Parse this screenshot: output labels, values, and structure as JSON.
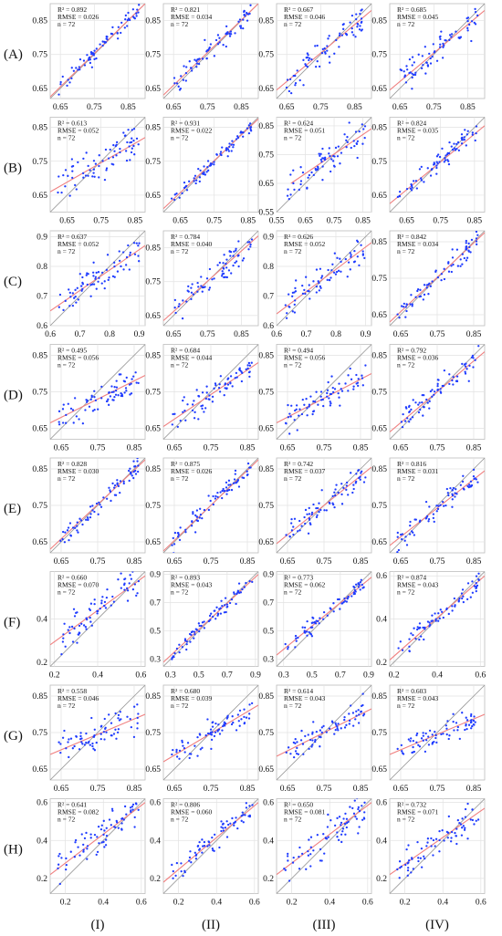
{
  "figure": {
    "row_labels": [
      "(A)",
      "(B)",
      "(C)",
      "(D)",
      "(E)",
      "(F)",
      "(G)",
      "(H)"
    ],
    "col_labels": [
      "(I)",
      "(II)",
      "(III)",
      "(IV)"
    ]
  },
  "style": {
    "point_color": "#1f3cff",
    "fit_color": "#f08080",
    "identity_color": "#9a9a9a",
    "grid_color": "#e2e2e2"
  },
  "chart_data": [
    {
      "type": "scatter",
      "row": "(A)",
      "col": "(I)",
      "r2": "R² = 0.892",
      "rmse": "RMSE = 0.026",
      "n": "n = 72",
      "xlim": [
        0.62,
        0.9
      ],
      "ylim": [
        0.62,
        0.9
      ],
      "xticks": [
        "0.65",
        "0.75",
        "0.85"
      ],
      "yticks": [
        "0.65",
        "0.75",
        "0.85"
      ],
      "fit": [
        [
          0.62,
          0.625
        ],
        [
          0.9,
          0.9
        ]
      ],
      "seed": 1,
      "noise": 0.02
    },
    {
      "type": "scatter",
      "row": "(A)",
      "col": "(II)",
      "r2": "R² = 0.821",
      "rmse": "RMSE = 0.034",
      "n": "n = 72",
      "xlim": [
        0.62,
        0.9
      ],
      "ylim": [
        0.62,
        0.9
      ],
      "xticks": [
        "0.65",
        "0.75",
        "0.85"
      ],
      "yticks": [
        "0.65",
        "0.75",
        "0.85"
      ],
      "fit": [
        [
          0.62,
          0.63
        ],
        [
          0.9,
          0.9
        ]
      ],
      "seed": 2,
      "noise": 0.025
    },
    {
      "type": "scatter",
      "row": "(A)",
      "col": "(III)",
      "r2": "R² = 0.667",
      "rmse": "RMSE = 0.046",
      "n": "n = 72",
      "xlim": [
        0.62,
        0.9
      ],
      "ylim": [
        0.62,
        0.9
      ],
      "xticks": [
        "0.65",
        "0.75",
        "0.85"
      ],
      "yticks": [
        "0.65",
        "0.75",
        "0.85"
      ],
      "fit": [
        [
          0.62,
          0.645
        ],
        [
          0.9,
          0.88
        ]
      ],
      "seed": 3,
      "noise": 0.035
    },
    {
      "type": "scatter",
      "row": "(A)",
      "col": "(IV)",
      "r2": "R² = 0.685",
      "rmse": "RMSE = 0.045",
      "n": "n = 72",
      "xlim": [
        0.62,
        0.9
      ],
      "ylim": [
        0.62,
        0.9
      ],
      "xticks": [
        "0.65",
        "0.75",
        "0.85"
      ],
      "yticks": [
        "0.65",
        "0.75",
        "0.85"
      ],
      "fit": [
        [
          0.62,
          0.645
        ],
        [
          0.9,
          0.88
        ]
      ],
      "seed": 4,
      "noise": 0.035
    },
    {
      "type": "scatter",
      "row": "(B)",
      "col": "(I)",
      "r2": "R² = 0.613",
      "rmse": "RMSE = 0.052",
      "n": "n = 72",
      "xlim": [
        0.6,
        0.88
      ],
      "ylim": [
        0.6,
        0.88
      ],
      "xticks": [
        "0.65",
        "0.75",
        "0.85"
      ],
      "yticks": [
        "0.65",
        "0.75",
        "0.85"
      ],
      "fit": [
        [
          0.6,
          0.66
        ],
        [
          0.88,
          0.82
        ]
      ],
      "seed": 5,
      "noise": 0.04
    },
    {
      "type": "scatter",
      "row": "(B)",
      "col": "(II)",
      "r2": "R² = 0.931",
      "rmse": "RMSE = 0.022",
      "n": "n = 72",
      "xlim": [
        0.6,
        0.88
      ],
      "ylim": [
        0.6,
        0.88
      ],
      "xticks": [
        "0.65",
        "0.75",
        "0.85"
      ],
      "yticks": [
        "0.65",
        "0.75",
        "0.85"
      ],
      "fit": [
        [
          0.6,
          0.61
        ],
        [
          0.88,
          0.875
        ]
      ],
      "seed": 6,
      "noise": 0.015
    },
    {
      "type": "scatter",
      "row": "(B)",
      "col": "(III)",
      "r2": "R² = 0.624",
      "rmse": "RMSE = 0.051",
      "n": "n = 72",
      "xlim": [
        0.55,
        0.88
      ],
      "ylim": [
        0.55,
        0.88
      ],
      "xticks": [
        "0.55",
        "0.65",
        "0.75",
        "0.85"
      ],
      "yticks": [
        "0.55",
        "0.65",
        "0.75",
        "0.85"
      ],
      "fit": [
        [
          0.6,
          0.65
        ],
        [
          0.88,
          0.84
        ]
      ],
      "seed": 7,
      "noise": 0.045
    },
    {
      "type": "scatter",
      "row": "(B)",
      "col": "(IV)",
      "r2": "R² = 0.824",
      "rmse": "RMSE = 0.035",
      "n": "n = 72",
      "xlim": [
        0.6,
        0.88
      ],
      "ylim": [
        0.6,
        0.88
      ],
      "xticks": [
        "0.65",
        "0.75",
        "0.85"
      ],
      "yticks": [
        "0.65",
        "0.75",
        "0.85"
      ],
      "fit": [
        [
          0.6,
          0.625
        ],
        [
          0.88,
          0.855
        ]
      ],
      "seed": 8,
      "noise": 0.025
    },
    {
      "type": "scatter",
      "row": "(C)",
      "col": "(I)",
      "r2": "R² = 0.637",
      "rmse": "RMSE = 0.052",
      "n": "n = 72",
      "xlim": [
        0.6,
        0.92
      ],
      "ylim": [
        0.6,
        0.92
      ],
      "xticks": [
        "0.6",
        "0.7",
        "0.8",
        "0.9"
      ],
      "yticks": [
        "0.6",
        "0.7",
        "0.8",
        "0.9"
      ],
      "fit": [
        [
          0.6,
          0.65
        ],
        [
          0.92,
          0.87
        ]
      ],
      "seed": 9,
      "noise": 0.04
    },
    {
      "type": "scatter",
      "row": "(C)",
      "col": "(II)",
      "r2": "R² = 0.784",
      "rmse": "RMSE = 0.040",
      "n": "n = 72",
      "xlim": [
        0.62,
        0.9
      ],
      "ylim": [
        0.62,
        0.9
      ],
      "xticks": [
        "0.65",
        "0.75",
        "0.85"
      ],
      "yticks": [
        "0.65",
        "0.75",
        "0.85"
      ],
      "fit": [
        [
          0.62,
          0.635
        ],
        [
          0.9,
          0.885
        ]
      ],
      "seed": 10,
      "noise": 0.03
    },
    {
      "type": "scatter",
      "row": "(C)",
      "col": "(III)",
      "r2": "R² = 0.626",
      "rmse": "RMSE = 0.052",
      "n": "n = 72",
      "xlim": [
        0.6,
        0.92
      ],
      "ylim": [
        0.6,
        0.92
      ],
      "xticks": [
        "0.6",
        "0.7",
        "0.8",
        "0.9"
      ],
      "yticks": [
        "0.6",
        "0.7",
        "0.8",
        "0.9"
      ],
      "fit": [
        [
          0.6,
          0.64
        ],
        [
          0.92,
          0.88
        ]
      ],
      "seed": 11,
      "noise": 0.04
    },
    {
      "type": "scatter",
      "row": "(C)",
      "col": "(IV)",
      "r2": "R² = 0.842",
      "rmse": "RMSE = 0.034",
      "n": "n = 72",
      "xlim": [
        0.62,
        0.88
      ],
      "ylim": [
        0.62,
        0.88
      ],
      "xticks": [
        "0.65",
        "0.75",
        "0.85"
      ],
      "yticks": [
        "0.65",
        "0.75",
        "0.85"
      ],
      "fit": [
        [
          0.62,
          0.63
        ],
        [
          0.88,
          0.875
        ]
      ],
      "seed": 12,
      "noise": 0.025
    },
    {
      "type": "scatter",
      "row": "(D)",
      "col": "(I)",
      "r2": "R² = 0.495",
      "rmse": "RMSE = 0.056",
      "n": "n = 72",
      "xlim": [
        0.62,
        0.88
      ],
      "ylim": [
        0.62,
        0.88
      ],
      "xticks": [
        "0.65",
        "0.75",
        "0.85"
      ],
      "yticks": [
        "0.65",
        "0.75",
        "0.85"
      ],
      "fit": [
        [
          0.62,
          0.665
        ],
        [
          0.88,
          0.795
        ]
      ],
      "seed": 13,
      "noise": 0.03
    },
    {
      "type": "scatter",
      "row": "(D)",
      "col": "(II)",
      "r2": "R² = 0.684",
      "rmse": "RMSE = 0.044",
      "n": "n = 72",
      "xlim": [
        0.62,
        0.88
      ],
      "ylim": [
        0.62,
        0.88
      ],
      "xticks": [
        "0.65",
        "0.75",
        "0.85"
      ],
      "yticks": [
        "0.65",
        "0.75",
        "0.85"
      ],
      "fit": [
        [
          0.62,
          0.655
        ],
        [
          0.88,
          0.83
        ]
      ],
      "seed": 14,
      "noise": 0.03
    },
    {
      "type": "scatter",
      "row": "(D)",
      "col": "(III)",
      "r2": "R² = 0.494",
      "rmse": "RMSE = 0.056",
      "n": "n = 72",
      "xlim": [
        0.62,
        0.88
      ],
      "ylim": [
        0.62,
        0.88
      ],
      "xticks": [
        "0.65",
        "0.75",
        "0.85"
      ],
      "yticks": [
        "0.65",
        "0.75",
        "0.85"
      ],
      "fit": [
        [
          0.62,
          0.665
        ],
        [
          0.88,
          0.8
        ]
      ],
      "seed": 15,
      "noise": 0.03
    },
    {
      "type": "scatter",
      "row": "(D)",
      "col": "(IV)",
      "r2": "R² = 0.792",
      "rmse": "RMSE = 0.036",
      "n": "n = 72",
      "xlim": [
        0.62,
        0.88
      ],
      "ylim": [
        0.62,
        0.88
      ],
      "xticks": [
        "0.65",
        "0.75",
        "0.85"
      ],
      "yticks": [
        "0.65",
        "0.75",
        "0.85"
      ],
      "fit": [
        [
          0.62,
          0.64
        ],
        [
          0.88,
          0.86
        ]
      ],
      "seed": 16,
      "noise": 0.025
    },
    {
      "type": "scatter",
      "row": "(E)",
      "col": "(I)",
      "r2": "R² = 0.828",
      "rmse": "RMSE = 0.030",
      "n": "n = 72",
      "xlim": [
        0.62,
        0.88
      ],
      "ylim": [
        0.62,
        0.88
      ],
      "xticks": [
        "0.65",
        "0.75",
        "0.85"
      ],
      "yticks": [
        "0.65",
        "0.75",
        "0.85"
      ],
      "fit": [
        [
          0.62,
          0.63
        ],
        [
          0.88,
          0.875
        ]
      ],
      "seed": 17,
      "noise": 0.022
    },
    {
      "type": "scatter",
      "row": "(E)",
      "col": "(II)",
      "r2": "R² = 0.875",
      "rmse": "RMSE = 0.026",
      "n": "n = 72",
      "xlim": [
        0.62,
        0.88
      ],
      "ylim": [
        0.62,
        0.88
      ],
      "xticks": [
        "0.65",
        "0.75",
        "0.85"
      ],
      "yticks": [
        "0.65",
        "0.75",
        "0.85"
      ],
      "fit": [
        [
          0.62,
          0.625
        ],
        [
          0.88,
          0.875
        ]
      ],
      "seed": 18,
      "noise": 0.02
    },
    {
      "type": "scatter",
      "row": "(E)",
      "col": "(III)",
      "r2": "R² = 0.742",
      "rmse": "RMSE = 0.037",
      "n": "n = 72",
      "xlim": [
        0.62,
        0.88
      ],
      "ylim": [
        0.62,
        0.88
      ],
      "xticks": [
        "0.65",
        "0.75",
        "0.85"
      ],
      "yticks": [
        "0.65",
        "0.75",
        "0.85"
      ],
      "fit": [
        [
          0.62,
          0.645
        ],
        [
          0.88,
          0.855
        ]
      ],
      "seed": 19,
      "noise": 0.028
    },
    {
      "type": "scatter",
      "row": "(E)",
      "col": "(IV)",
      "r2": "R² = 0.816",
      "rmse": "RMSE = 0.031",
      "n": "n = 72",
      "xlim": [
        0.62,
        0.88
      ],
      "ylim": [
        0.62,
        0.88
      ],
      "xticks": [
        "0.65",
        "0.75",
        "0.85"
      ],
      "yticks": [
        "0.65",
        "0.75",
        "0.85"
      ],
      "fit": [
        [
          0.62,
          0.64
        ],
        [
          0.88,
          0.845
        ]
      ],
      "seed": 20,
      "noise": 0.023
    },
    {
      "type": "scatter",
      "row": "(F)",
      "col": "(I)",
      "r2": "R² = 0.660",
      "rmse": "RMSE = 0.070",
      "n": "n = 72",
      "xlim": [
        0.18,
        0.62
      ],
      "ylim": [
        0.18,
        0.62
      ],
      "xticks": [
        "0.2",
        "0.4",
        "0.6"
      ],
      "yticks": [
        "0.2",
        "0.4"
      ],
      "fit": [
        [
          0.18,
          0.28
        ],
        [
          0.62,
          0.6
        ]
      ],
      "seed": 21,
      "noise": 0.06
    },
    {
      "type": "scatter",
      "row": "(F)",
      "col": "(II)",
      "r2": "R² = 0.893",
      "rmse": "RMSE = 0.043",
      "n": "n = 72",
      "xlim": [
        0.25,
        0.92
      ],
      "ylim": [
        0.25,
        0.92
      ],
      "xticks": [
        "0.3",
        "0.5",
        "0.7",
        "0.9"
      ],
      "yticks": [
        "0.3",
        "0.5",
        "0.7",
        "0.9"
      ],
      "fit": [
        [
          0.25,
          0.28
        ],
        [
          0.92,
          0.9
        ]
      ],
      "seed": 22,
      "noise": 0.04
    },
    {
      "type": "scatter",
      "row": "(F)",
      "col": "(III)",
      "r2": "R² = 0.773",
      "rmse": "RMSE = 0.062",
      "n": "n = 72",
      "xlim": [
        0.25,
        0.92
      ],
      "ylim": [
        0.25,
        0.92
      ],
      "xticks": [
        "0.3",
        "0.5",
        "0.7",
        "0.9"
      ],
      "yticks": [
        "0.3",
        "0.5",
        "0.7",
        "0.9"
      ],
      "fit": [
        [
          0.25,
          0.33
        ],
        [
          0.92,
          0.88
        ]
      ],
      "seed": 23,
      "noise": 0.05
    },
    {
      "type": "scatter",
      "row": "(F)",
      "col": "(IV)",
      "r2": "R² = 0.874",
      "rmse": "RMSE = 0.043",
      "n": "n = 72",
      "xlim": [
        0.18,
        0.62
      ],
      "ylim": [
        0.18,
        0.62
      ],
      "xticks": [
        "0.2",
        "0.4",
        "0.6"
      ],
      "yticks": [
        "0.2",
        "0.4",
        "0.6"
      ],
      "fit": [
        [
          0.18,
          0.21
        ],
        [
          0.62,
          0.6
        ]
      ],
      "seed": 24,
      "noise": 0.035
    },
    {
      "type": "scatter",
      "row": "(G)",
      "col": "(I)",
      "r2": "R² = 0.558",
      "rmse": "RMSE = 0.046",
      "n": "n = 72",
      "xlim": [
        0.62,
        0.88
      ],
      "ylim": [
        0.62,
        0.88
      ],
      "xticks": [
        "0.65",
        "0.75",
        "0.85"
      ],
      "yticks": [
        "0.65",
        "0.75",
        "0.85"
      ],
      "fit": [
        [
          0.62,
          0.69
        ],
        [
          0.88,
          0.8
        ]
      ],
      "seed": 25,
      "noise": 0.03
    },
    {
      "type": "scatter",
      "row": "(G)",
      "col": "(II)",
      "r2": "R² = 0.680",
      "rmse": "RMSE = 0.039",
      "n": "n = 72",
      "xlim": [
        0.62,
        0.88
      ],
      "ylim": [
        0.62,
        0.88
      ],
      "xticks": [
        "0.65",
        "0.75",
        "0.85"
      ],
      "yticks": [
        "0.65",
        "0.75",
        "0.85"
      ],
      "fit": [
        [
          0.62,
          0.67
        ],
        [
          0.88,
          0.825
        ]
      ],
      "seed": 26,
      "noise": 0.028
    },
    {
      "type": "scatter",
      "row": "(G)",
      "col": "(III)",
      "r2": "R² = 0.614",
      "rmse": "RMSE = 0.043",
      "n": "n = 72",
      "xlim": [
        0.62,
        0.88
      ],
      "ylim": [
        0.62,
        0.88
      ],
      "xticks": [
        "0.65",
        "0.75",
        "0.85"
      ],
      "yticks": [
        "0.65",
        "0.75",
        "0.85"
      ],
      "fit": [
        [
          0.62,
          0.685
        ],
        [
          0.88,
          0.815
        ]
      ],
      "seed": 27,
      "noise": 0.03
    },
    {
      "type": "scatter",
      "row": "(G)",
      "col": "(IV)",
      "r2": "R² = 0.603",
      "rmse": "RMSE = 0.043",
      "n": "n = 72",
      "xlim": [
        0.62,
        0.88
      ],
      "ylim": [
        0.62,
        0.88
      ],
      "xticks": [
        "0.65",
        "0.75",
        "0.85"
      ],
      "yticks": [
        "0.65",
        "0.75",
        "0.85"
      ],
      "fit": [
        [
          0.62,
          0.69
        ],
        [
          0.88,
          0.8
        ]
      ],
      "seed": 28,
      "noise": 0.025
    },
    {
      "type": "scatter",
      "row": "(H)",
      "col": "(I)",
      "r2": "R² = 0.641",
      "rmse": "RMSE = 0.082",
      "n": "n = 72",
      "xlim": [
        0.12,
        0.62
      ],
      "ylim": [
        0.12,
        0.62
      ],
      "xticks": [
        "0.2",
        "0.4",
        "0.6"
      ],
      "yticks": [
        "0.2",
        "0.4",
        "0.6"
      ],
      "fit": [
        [
          0.12,
          0.22
        ],
        [
          0.62,
          0.6
        ]
      ],
      "seed": 29,
      "noise": 0.07
    },
    {
      "type": "scatter",
      "row": "(H)",
      "col": "(II)",
      "r2": "R² = 0.806",
      "rmse": "RMSE = 0.060",
      "n": "n = 72",
      "xlim": [
        0.12,
        0.62
      ],
      "ylim": [
        0.12,
        0.62
      ],
      "xticks": [
        "0.2",
        "0.4",
        "0.6"
      ],
      "yticks": [
        "0.2",
        "0.4",
        "0.6"
      ],
      "fit": [
        [
          0.12,
          0.18
        ],
        [
          0.62,
          0.6
        ]
      ],
      "seed": 30,
      "noise": 0.05
    },
    {
      "type": "scatter",
      "row": "(H)",
      "col": "(III)",
      "r2": "R² = 0.650",
      "rmse": "RMSE = 0.081",
      "n": "n = 72",
      "xlim": [
        0.12,
        0.62
      ],
      "ylim": [
        0.12,
        0.62
      ],
      "xticks": [
        "0.2",
        "0.4",
        "0.6"
      ],
      "yticks": [
        "0.2",
        "0.4",
        "0.6"
      ],
      "fit": [
        [
          0.12,
          0.22
        ],
        [
          0.62,
          0.6
        ]
      ],
      "seed": 31,
      "noise": 0.07
    },
    {
      "type": "scatter",
      "row": "(H)",
      "col": "(IV)",
      "r2": "R² = 0.732",
      "rmse": "RMSE = 0.071",
      "n": "n = 72",
      "xlim": [
        0.12,
        0.62
      ],
      "ylim": [
        0.12,
        0.62
      ],
      "xticks": [
        "0.2",
        "0.4",
        "0.6"
      ],
      "yticks": [
        "0.2",
        "0.4",
        "0.6"
      ],
      "fit": [
        [
          0.12,
          0.22
        ],
        [
          0.62,
          0.57
        ]
      ],
      "seed": 32,
      "noise": 0.06
    }
  ]
}
